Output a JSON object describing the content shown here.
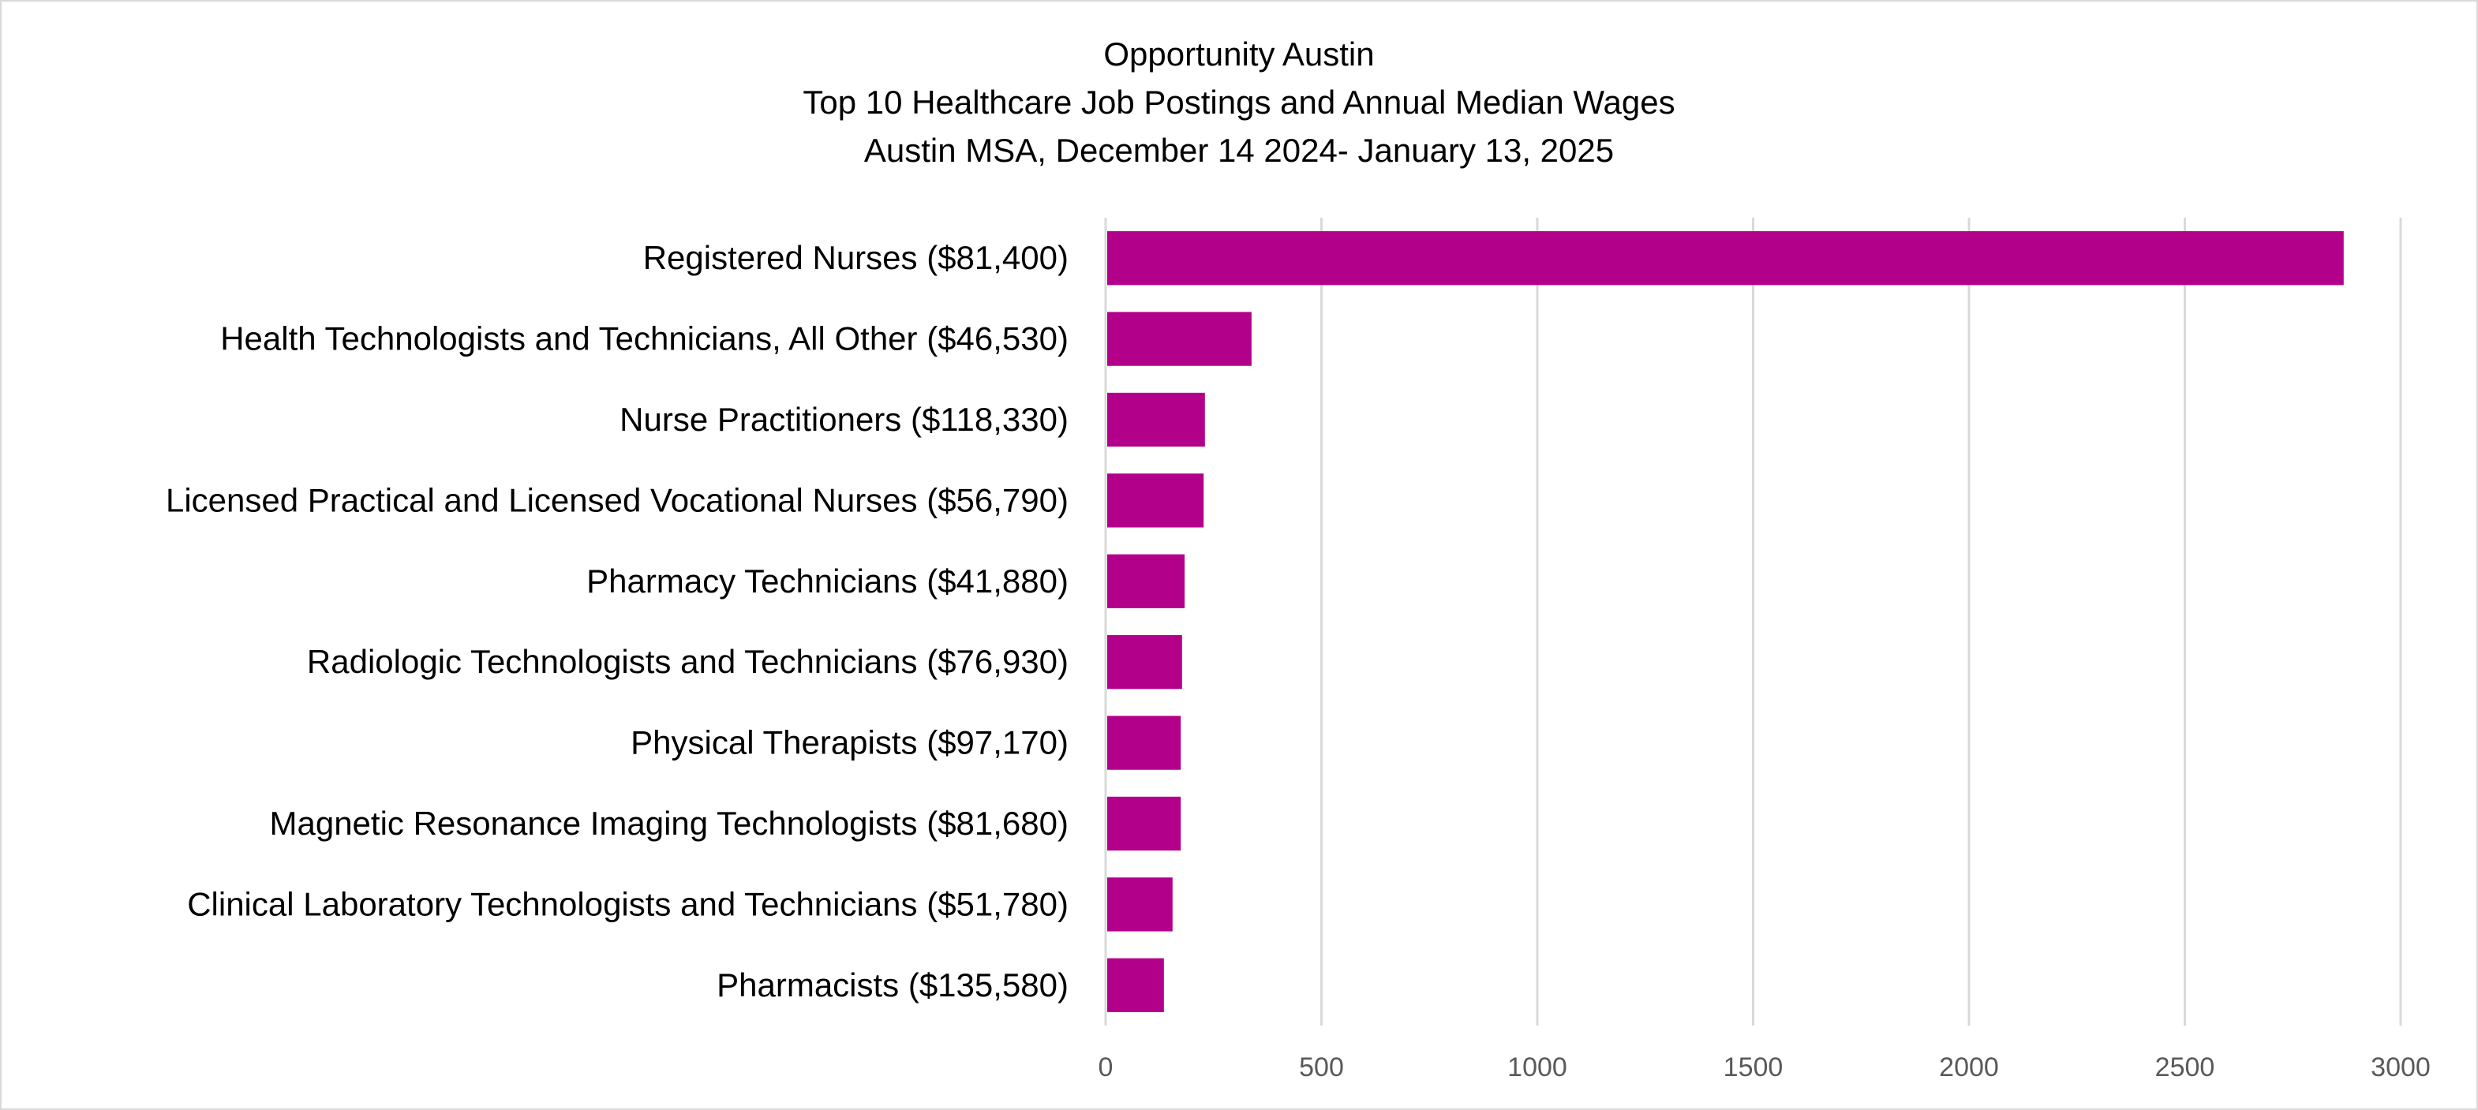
{
  "chart_data": {
    "type": "bar",
    "orientation": "horizontal",
    "title": [
      "Opportunity Austin",
      "Top 10 Healthcare Job Postings and Annual Median Wages",
      "Austin MSA, December 14 2024- January 13, 2025"
    ],
    "categories": [
      "Registered Nurses ($81,400)",
      "Health Technologists and Technicians, All Other ($46,530)",
      "Nurse Practitioners ($118,330)",
      "Licensed Practical and Licensed Vocational Nurses ($56,790)",
      "Pharmacy Technicians ($41,880)",
      "Radiologic Technologists and Technicians ($76,930)",
      "Physical Therapists ($97,170)",
      "Magnetic Resonance Imaging Technologists ($81,680)",
      "Clinical Laboratory Technologists and Technicians ($51,780)",
      "Pharmacists ($135,580)"
    ],
    "values": [
      2868,
      338,
      230,
      227,
      183,
      177,
      174,
      174,
      155,
      135
    ],
    "xlim": [
      0,
      3000
    ],
    "xticks": [
      "0",
      "500",
      "1000",
      "1500",
      "2000",
      "2500",
      "3000"
    ],
    "xlabel": "",
    "ylabel": "",
    "grid": "vertical",
    "legend": "none",
    "bar_color": "#B3008B",
    "grid_color": "#d9d9d9"
  }
}
